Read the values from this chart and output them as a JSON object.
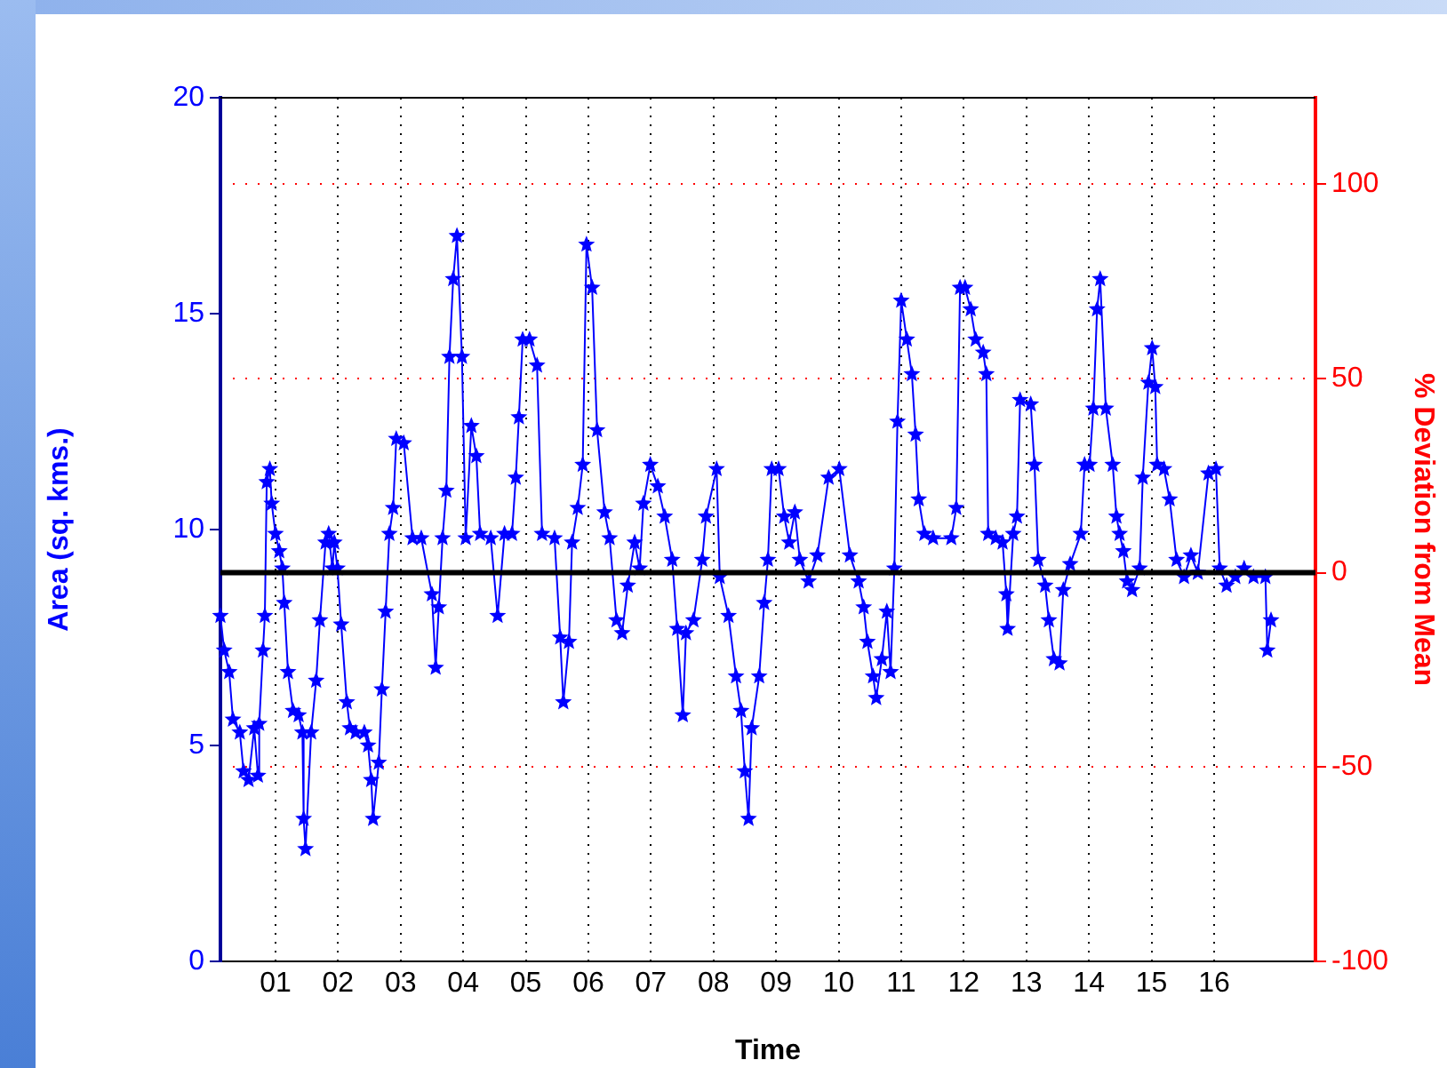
{
  "chart_data": {
    "type": "line",
    "xlabel": "Time",
    "ylabel": "Area (sq. kms.)",
    "y2label": "% Deviation from Mean",
    "xlim": [
      0.12,
      17.62
    ],
    "xticks": [
      {
        "value": 1,
        "label": "01"
      },
      {
        "value": 2,
        "label": "02"
      },
      {
        "value": 3,
        "label": "03"
      },
      {
        "value": 4,
        "label": "04"
      },
      {
        "value": 5,
        "label": "05"
      },
      {
        "value": 6,
        "label": "06"
      },
      {
        "value": 7,
        "label": "07"
      },
      {
        "value": 8,
        "label": "08"
      },
      {
        "value": 9,
        "label": "09"
      },
      {
        "value": 10,
        "label": "10"
      },
      {
        "value": 11,
        "label": "11"
      },
      {
        "value": 12,
        "label": "12"
      },
      {
        "value": 13,
        "label": "13"
      },
      {
        "value": 14,
        "label": "14"
      },
      {
        "value": 15,
        "label": "15"
      },
      {
        "value": 16,
        "label": "16"
      }
    ],
    "ylim": [
      0,
      20
    ],
    "yticks": [
      0,
      5,
      10,
      15,
      20
    ],
    "y2lim": [
      -100,
      122.2
    ],
    "y2ticks": [
      -100,
      -50,
      0,
      50,
      100
    ],
    "grid": true,
    "marker": "star",
    "line_style": "solid",
    "ref_lines": [
      {
        "axis": "y",
        "value": 9,
        "color": "#000000"
      }
    ],
    "series": [
      {
        "color": "#0000ff",
        "x": [
          0.12,
          0.18,
          0.26,
          0.32,
          0.43,
          0.49,
          0.57,
          0.66,
          0.72,
          0.74,
          0.8,
          0.83,
          0.86,
          0.91,
          0.94,
          1.0,
          1.06,
          1.11,
          1.14,
          1.2,
          1.28,
          1.37,
          1.43,
          1.45,
          1.48,
          1.57,
          1.65,
          1.71,
          1.8,
          1.85,
          1.91,
          1.94,
          1.99,
          2.05,
          2.14,
          2.19,
          2.28,
          2.42,
          2.48,
          2.53,
          2.56,
          2.65,
          2.7,
          2.76,
          2.82,
          2.88,
          2.93,
          3.05,
          3.19,
          3.33,
          3.5,
          3.56,
          3.61,
          3.67,
          3.73,
          3.78,
          3.84,
          3.9,
          3.98,
          4.04,
          4.13,
          4.21,
          4.27,
          4.44,
          4.55,
          4.66,
          4.78,
          4.84,
          4.89,
          4.95,
          5.06,
          5.18,
          5.26,
          5.46,
          5.55,
          5.6,
          5.69,
          5.74,
          5.83,
          5.91,
          5.97,
          6.06,
          6.14,
          6.26,
          6.34,
          6.45,
          6.54,
          6.63,
          6.74,
          6.82,
          6.88,
          6.99,
          7.11,
          7.22,
          7.34,
          7.42,
          7.51,
          7.56,
          7.68,
          7.82,
          7.88,
          8.05,
          8.1,
          8.24,
          8.36,
          8.44,
          8.5,
          8.56,
          8.61,
          8.73,
          8.81,
          8.87,
          8.93,
          9.04,
          9.13,
          9.21,
          9.3,
          9.38,
          9.52,
          9.66,
          9.84,
          10.01,
          10.18,
          10.32,
          10.4,
          10.46,
          10.55,
          10.6,
          10.69,
          10.77,
          10.83,
          10.89,
          10.94,
          11.0,
          11.09,
          11.17,
          11.23,
          11.28,
          11.37,
          11.51,
          11.8,
          11.88,
          11.94,
          12.02,
          12.11,
          12.19,
          12.31,
          12.36,
          12.39,
          12.51,
          12.62,
          12.68,
          12.7,
          12.79,
          12.85,
          12.9,
          13.07,
          13.13,
          13.19,
          13.3,
          13.36,
          13.44,
          13.53,
          13.59,
          13.7,
          13.87,
          13.93,
          14.01,
          14.07,
          14.13,
          14.18,
          14.27,
          14.38,
          14.44,
          14.49,
          14.55,
          14.61,
          14.69,
          14.81,
          14.86,
          14.95,
          15.01,
          15.06,
          15.09,
          15.2,
          15.29,
          15.4,
          15.52,
          15.63,
          15.74,
          15.91,
          16.03,
          16.09,
          16.2,
          16.34,
          16.48,
          16.63,
          16.82,
          16.85,
          16.91
        ],
        "values": [
          8.0,
          7.2,
          6.7,
          5.6,
          5.3,
          4.4,
          4.2,
          5.4,
          4.3,
          5.5,
          7.2,
          8.0,
          11.1,
          11.4,
          10.6,
          9.9,
          9.5,
          9.1,
          8.3,
          6.7,
          5.8,
          5.7,
          5.3,
          3.3,
          2.6,
          5.3,
          6.5,
          7.9,
          9.7,
          9.9,
          9.1,
          9.7,
          9.1,
          7.8,
          6.0,
          5.4,
          5.3,
          5.3,
          5.0,
          4.2,
          3.3,
          4.6,
          6.3,
          8.1,
          9.9,
          10.5,
          12.1,
          12.0,
          9.8,
          9.8,
          8.5,
          6.8,
          8.2,
          9.8,
          10.9,
          14.0,
          15.8,
          16.8,
          14.0,
          9.8,
          12.4,
          11.7,
          9.9,
          9.8,
          8.0,
          9.9,
          9.9,
          11.2,
          12.6,
          14.4,
          14.4,
          13.8,
          9.9,
          9.8,
          7.5,
          6.0,
          7.4,
          9.7,
          10.5,
          11.5,
          16.6,
          15.6,
          12.3,
          10.4,
          9.8,
          7.9,
          7.6,
          8.7,
          9.7,
          9.1,
          10.6,
          11.5,
          11.0,
          10.3,
          9.3,
          7.7,
          5.7,
          7.6,
          7.9,
          9.3,
          10.3,
          11.4,
          8.9,
          8.0,
          6.6,
          5.8,
          4.4,
          3.3,
          5.4,
          6.6,
          8.3,
          9.3,
          11.4,
          11.4,
          10.3,
          9.7,
          10.4,
          9.3,
          8.8,
          9.4,
          11.2,
          11.4,
          9.4,
          8.8,
          8.2,
          7.4,
          6.6,
          6.1,
          7.0,
          8.1,
          6.7,
          9.1,
          12.5,
          15.3,
          14.4,
          13.6,
          12.2,
          10.7,
          9.9,
          9.8,
          9.8,
          10.5,
          15.6,
          15.6,
          15.1,
          14.4,
          14.1,
          13.6,
          9.9,
          9.8,
          9.7,
          8.5,
          7.7,
          9.9,
          10.3,
          13.0,
          12.9,
          11.5,
          9.3,
          8.7,
          7.9,
          7.0,
          6.9,
          8.6,
          9.2,
          9.9,
          11.5,
          11.5,
          12.8,
          15.1,
          15.8,
          12.8,
          11.5,
          10.3,
          9.9,
          9.5,
          8.8,
          8.6,
          9.1,
          11.2,
          13.4,
          14.2,
          13.3,
          11.5,
          11.4,
          10.7,
          9.3,
          8.9,
          9.4,
          9.0,
          11.3,
          11.4,
          9.1,
          8.7,
          8.9,
          9.1,
          8.9,
          8.9,
          7.2,
          7.9
        ]
      }
    ]
  }
}
